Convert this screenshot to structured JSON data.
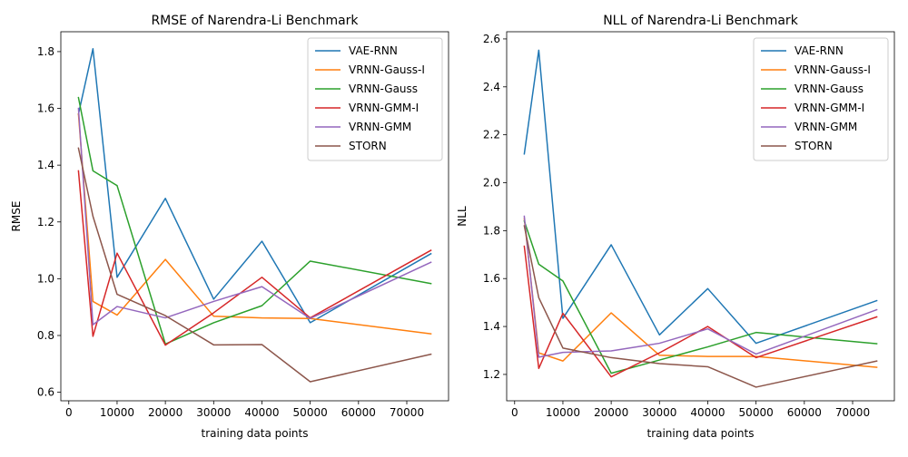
{
  "chart_data": [
    {
      "type": "line",
      "title": "RMSE of Narendra-Li Benchmark",
      "xlabel": "training data points",
      "ylabel": "RMSE",
      "xlim": [
        -1650,
        78650
      ],
      "ylim": [
        0.57,
        1.87
      ],
      "x_ticks": [
        0,
        10000,
        20000,
        30000,
        40000,
        50000,
        60000,
        70000
      ],
      "y_ticks": [
        0.6,
        0.8,
        1.0,
        1.2,
        1.4,
        1.6,
        1.8
      ],
      "x_tick_labels": [
        "0",
        "10000",
        "20000",
        "30000",
        "40000",
        "50000",
        "60000",
        "70000"
      ],
      "y_tick_labels": [
        "0.6",
        "0.8",
        "1.0",
        "1.2",
        "1.4",
        "1.6",
        "1.8"
      ],
      "grid": false,
      "legend_position": "top-right",
      "x": [
        2000,
        5000,
        10000,
        20000,
        30000,
        40000,
        50000,
        75000
      ],
      "series": [
        {
          "name": "VAE-RNN",
          "color": "#1f77b4",
          "values": [
            1.58,
            1.81,
            1.005,
            1.283,
            0.928,
            1.132,
            0.845,
            1.088
          ]
        },
        {
          "name": "VRNN-Gauss-I",
          "color": "#ff7f0e",
          "values": [
            1.58,
            0.92,
            0.872,
            1.068,
            0.868,
            0.862,
            0.86,
            0.806
          ]
        },
        {
          "name": "VRNN-Gauss",
          "color": "#2ca02c",
          "values": [
            1.638,
            1.38,
            1.328,
            0.77,
            0.845,
            0.905,
            1.062,
            0.983
          ]
        },
        {
          "name": "VRNN-GMM-I",
          "color": "#d62728",
          "values": [
            1.38,
            0.797,
            1.09,
            0.766,
            0.88,
            1.005,
            0.862,
            1.1
          ]
        },
        {
          "name": "VRNN-GMM",
          "color": "#9467bd",
          "values": [
            1.6,
            0.838,
            0.902,
            0.862,
            0.92,
            0.972,
            0.86,
            1.058
          ]
        },
        {
          "name": "STORN",
          "color": "#8c564b",
          "values": [
            1.46,
            1.22,
            0.945,
            0.87,
            0.767,
            0.768,
            0.637,
            0.734
          ]
        }
      ]
    },
    {
      "type": "line",
      "title": "NLL of Narendra-Li Benchmark",
      "xlabel": "training data points",
      "ylabel": "NLL",
      "xlim": [
        -1650,
        78650
      ],
      "ylim": [
        1.09,
        2.63
      ],
      "x_ticks": [
        0,
        10000,
        20000,
        30000,
        40000,
        50000,
        60000,
        70000
      ],
      "y_ticks": [
        1.2,
        1.4,
        1.6,
        1.8,
        2.0,
        2.2,
        2.4,
        2.6
      ],
      "x_tick_labels": [
        "0",
        "10000",
        "20000",
        "30000",
        "40000",
        "50000",
        "60000",
        "70000"
      ],
      "y_tick_labels": [
        "1.2",
        "1.4",
        "1.6",
        "1.8",
        "2.0",
        "2.2",
        "2.4",
        "2.6"
      ],
      "grid": false,
      "legend_position": "top-right",
      "x": [
        2000,
        5000,
        10000,
        20000,
        30000,
        40000,
        50000,
        75000
      ],
      "series": [
        {
          "name": "VAE-RNN",
          "color": "#1f77b4",
          "values": [
            2.12,
            2.553,
            1.434,
            1.741,
            1.365,
            1.558,
            1.33,
            1.508
          ]
        },
        {
          "name": "VRNN-Gauss-I",
          "color": "#ff7f0e",
          "values": [
            1.85,
            1.29,
            1.256,
            1.457,
            1.28,
            1.275,
            1.275,
            1.23
          ]
        },
        {
          "name": "VRNN-Gauss",
          "color": "#2ca02c",
          "values": [
            1.84,
            1.66,
            1.59,
            1.205,
            1.26,
            1.315,
            1.375,
            1.328
          ]
        },
        {
          "name": "VRNN-GMM-I",
          "color": "#d62728",
          "values": [
            1.735,
            1.225,
            1.455,
            1.19,
            1.29,
            1.4,
            1.27,
            1.44
          ]
        },
        {
          "name": "VRNN-GMM",
          "color": "#9467bd",
          "values": [
            1.86,
            1.272,
            1.292,
            1.298,
            1.33,
            1.39,
            1.285,
            1.47
          ]
        },
        {
          "name": "STORN",
          "color": "#8c564b",
          "values": [
            1.82,
            1.52,
            1.31,
            1.27,
            1.245,
            1.232,
            1.147,
            1.256
          ]
        }
      ]
    }
  ]
}
